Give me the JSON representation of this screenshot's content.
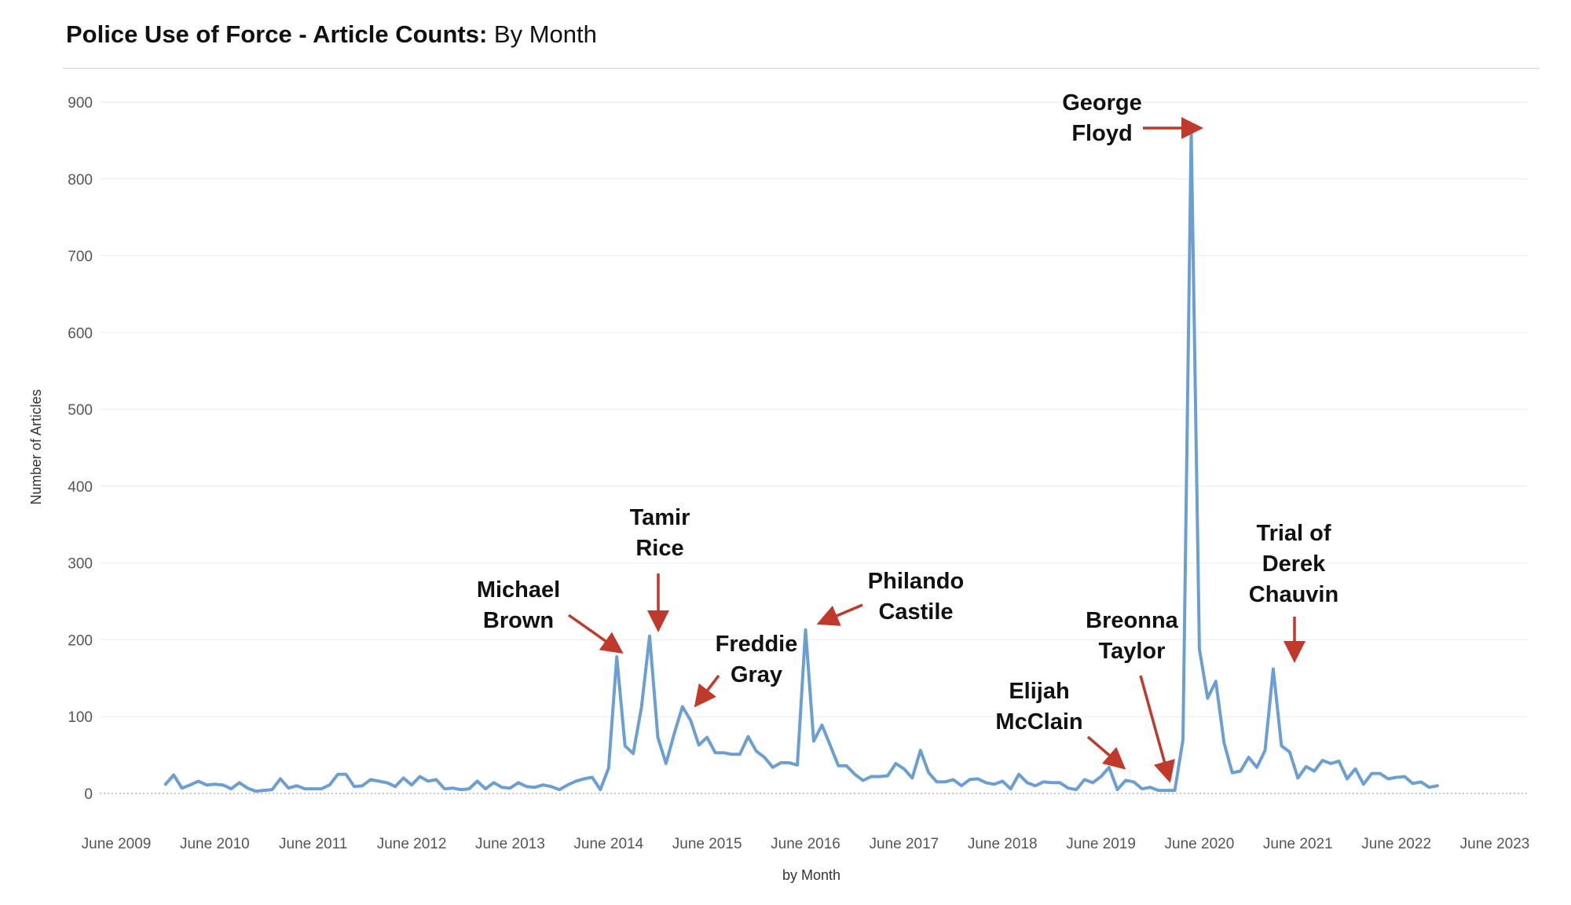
{
  "title_main": "Police Use of Force - Article Counts:",
  "title_sub": "By Month",
  "chart_data": {
    "type": "line",
    "title": "Police Use of Force - Article Counts: By Month",
    "xlabel": "by Month",
    "ylabel": "Number of Articles",
    "ylim": [
      0,
      900
    ],
    "yticks": [
      0,
      100,
      200,
      300,
      400,
      500,
      600,
      700,
      800,
      900
    ],
    "xticks": [
      "June 2009",
      "June 2010",
      "June 2011",
      "June 2012",
      "June 2013",
      "June 2014",
      "June 2015",
      "June 2016",
      "June 2017",
      "June 2018",
      "June 2019",
      "June 2020",
      "June 2021",
      "June 2022",
      "June 2023"
    ],
    "grid": true,
    "line_color": "#6b9fd4",
    "annotation_color": "#c0392b",
    "series": [
      {
        "start": "2009-12",
        "values": [
          12,
          24,
          7,
          11,
          16,
          11,
          12,
          11,
          6,
          14,
          7,
          3,
          4,
          5,
          19,
          7,
          10,
          6,
          6,
          6,
          11,
          25,
          25,
          9,
          10,
          18,
          16,
          14,
          9,
          20,
          11,
          22,
          16,
          18,
          6,
          7,
          5,
          6,
          16,
          6,
          14,
          8,
          7,
          14,
          9,
          8,
          11,
          9,
          5,
          11,
          16,
          19,
          21,
          5,
          33,
          178,
          62,
          52,
          112,
          205,
          73,
          39,
          78,
          113,
          95,
          63,
          73,
          53,
          53,
          51,
          51,
          74,
          55,
          47,
          34,
          40,
          40,
          37,
          213,
          68,
          89,
          63,
          36,
          36,
          25,
          17,
          22,
          22,
          23,
          39,
          32,
          20,
          56,
          27,
          15,
          15,
          18,
          10,
          18,
          19,
          14,
          12,
          16,
          6,
          25,
          14,
          10,
          15,
          14,
          14,
          7,
          5,
          18,
          14,
          22,
          34,
          5,
          17,
          15,
          6,
          8,
          4,
          4,
          4,
          70,
          862,
          188,
          124,
          146,
          66,
          27,
          29,
          47,
          34,
          56,
          162,
          62,
          54,
          20,
          35,
          29,
          43,
          39,
          42,
          19,
          32,
          12,
          26,
          26,
          19,
          21,
          22,
          13,
          15,
          8,
          10
        ]
      }
    ],
    "annotations": [
      {
        "lines": [
          "Michael",
          "Brown"
        ],
        "target": "2014-08"
      },
      {
        "lines": [
          "Tamir",
          "Rice"
        ],
        "target": "2014-11"
      },
      {
        "lines": [
          "Freddie",
          "Gray"
        ],
        "target": "2015-03"
      },
      {
        "lines": [
          "Philando",
          "Castile"
        ],
        "target": "2016-07"
      },
      {
        "lines": [
          "Elijah",
          "McClain"
        ],
        "target": "2019-09"
      },
      {
        "lines": [
          "Breonna",
          "Taylor"
        ],
        "target": "2020-03"
      },
      {
        "lines": [
          "George",
          "Floyd"
        ],
        "target": "2020-06"
      },
      {
        "lines": [
          "Trial of",
          "Derek",
          "Chauvin"
        ],
        "target": "2021-04"
      }
    ]
  }
}
